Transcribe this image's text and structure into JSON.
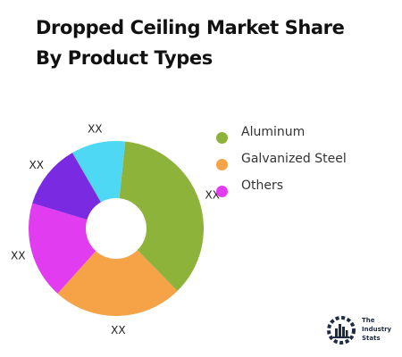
{
  "title_line1": "Dropped Ceiling Market Share",
  "title_line2": "By Product Types",
  "chart_data": {
    "type": "pie",
    "donut": true,
    "categories": [
      "Aluminum",
      "Galvanized Steel",
      "Others"
    ],
    "slices": [
      {
        "name": "Aluminum",
        "value": 36,
        "label": "XX",
        "color": "#8db33a"
      },
      {
        "name": "Galvanized Steel",
        "value": 24,
        "label": "XX",
        "color": "#f5a346"
      },
      {
        "name": "Others",
        "value": 18,
        "label": "XX",
        "color": "#e23cf0"
      },
      {
        "name": "Others",
        "value": 12,
        "label": "XX",
        "color": "#7a2ae0"
      },
      {
        "name": "Others",
        "value": 10,
        "label": "XX",
        "color": "#4fd8f4"
      }
    ],
    "legend": [
      {
        "label": "Aluminum",
        "color": "#8db33a"
      },
      {
        "label": "Galvanized Steel",
        "color": "#f5a346"
      },
      {
        "label": "Others",
        "color": "#e23cf0"
      }
    ],
    "legend_position": "right"
  },
  "brand": {
    "line1": "The",
    "line2": "Industry",
    "line3": "Stats",
    "icon": "gear-skyline-icon"
  }
}
